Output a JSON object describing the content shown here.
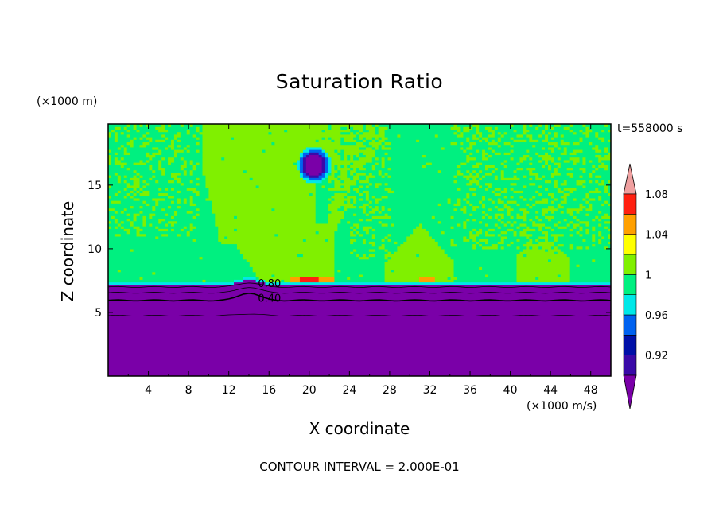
{
  "chart_data": {
    "type": "heatmap",
    "title": "Saturation Ratio",
    "xlabel": "X coordinate",
    "ylabel": "Z coordinate",
    "x_unit": "(×1000 m/s)",
    "y_unit": "(×1000 m)",
    "time_label": "t=558000 s",
    "footer": "CONTOUR INTERVAL = 2.000E-01",
    "xlim": [
      0,
      50
    ],
    "ylim": [
      0,
      19.8
    ],
    "x_ticks": [
      "4",
      "8",
      "12",
      "16",
      "20",
      "24",
      "28",
      "32",
      "36",
      "40",
      "44",
      "48"
    ],
    "y_ticks": [
      "5",
      "10",
      "15"
    ],
    "colorbar": {
      "levels": [
        0.9,
        0.92,
        0.94,
        0.96,
        0.98,
        1,
        1.02,
        1.04,
        1.06,
        1.08,
        1.1
      ],
      "tick_labels": [
        "0.92",
        "0.96",
        "1",
        "1.04",
        "1.08"
      ],
      "colors": [
        "#7a00a8",
        "#3a0aa8",
        "#0010a8",
        "#0062f0",
        "#00e8e8",
        "#00f080",
        "#80f000",
        "#ffff00",
        "#ffa000",
        "#ff2010",
        "#f0a0a0"
      ],
      "extend": "both"
    },
    "contour_labels": [
      "0.80",
      "0.40"
    ],
    "regions": [
      {
        "name": "dry lower layer",
        "z_range": [
          0,
          7.2
        ],
        "value_below": 0.9
      },
      {
        "name": "near-saturated upper layer",
        "z_range": [
          7.2,
          19.8
        ],
        "value": 0.99
      },
      {
        "name": "saturated plume",
        "x_range": [
          9,
          22
        ],
        "z_range": [
          7.3,
          19.8
        ],
        "value": 1.01
      },
      {
        "name": "saturated column",
        "x_range": [
          28,
          34
        ],
        "z_range": [
          7.5,
          12
        ],
        "value": 1.01
      },
      {
        "name": "saturated column",
        "x_range": [
          41,
          46
        ],
        "z_range": [
          7.5,
          11
        ],
        "value": 1.01
      }
    ]
  }
}
